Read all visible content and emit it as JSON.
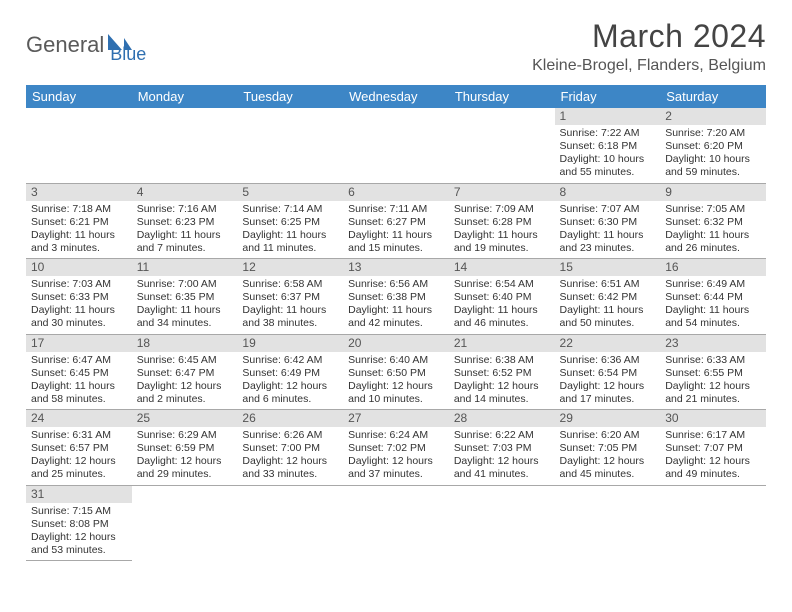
{
  "logo": {
    "part1": "General",
    "part2": "Blue"
  },
  "title": "March 2024",
  "location": "Kleine-Brogel, Flanders, Belgium",
  "colors": {
    "header_bg": "#3d86c6",
    "header_text": "#ffffff",
    "daynum_bg": "#e2e2e2",
    "border": "#a8a8a8",
    "logo_gray": "#5a5a5a",
    "logo_blue": "#2f6fb0"
  },
  "weekdays": [
    "Sunday",
    "Monday",
    "Tuesday",
    "Wednesday",
    "Thursday",
    "Friday",
    "Saturday"
  ],
  "cells": [
    {
      "blank": true
    },
    {
      "blank": true
    },
    {
      "blank": true
    },
    {
      "blank": true
    },
    {
      "blank": true
    },
    {
      "n": "1",
      "sr": "Sunrise: 7:22 AM",
      "ss": "Sunset: 6:18 PM",
      "dl": "Daylight: 10 hours and 55 minutes."
    },
    {
      "n": "2",
      "sr": "Sunrise: 7:20 AM",
      "ss": "Sunset: 6:20 PM",
      "dl": "Daylight: 10 hours and 59 minutes."
    },
    {
      "n": "3",
      "sr": "Sunrise: 7:18 AM",
      "ss": "Sunset: 6:21 PM",
      "dl": "Daylight: 11 hours and 3 minutes."
    },
    {
      "n": "4",
      "sr": "Sunrise: 7:16 AM",
      "ss": "Sunset: 6:23 PM",
      "dl": "Daylight: 11 hours and 7 minutes."
    },
    {
      "n": "5",
      "sr": "Sunrise: 7:14 AM",
      "ss": "Sunset: 6:25 PM",
      "dl": "Daylight: 11 hours and 11 minutes."
    },
    {
      "n": "6",
      "sr": "Sunrise: 7:11 AM",
      "ss": "Sunset: 6:27 PM",
      "dl": "Daylight: 11 hours and 15 minutes."
    },
    {
      "n": "7",
      "sr": "Sunrise: 7:09 AM",
      "ss": "Sunset: 6:28 PM",
      "dl": "Daylight: 11 hours and 19 minutes."
    },
    {
      "n": "8",
      "sr": "Sunrise: 7:07 AM",
      "ss": "Sunset: 6:30 PM",
      "dl": "Daylight: 11 hours and 23 minutes."
    },
    {
      "n": "9",
      "sr": "Sunrise: 7:05 AM",
      "ss": "Sunset: 6:32 PM",
      "dl": "Daylight: 11 hours and 26 minutes."
    },
    {
      "n": "10",
      "sr": "Sunrise: 7:03 AM",
      "ss": "Sunset: 6:33 PM",
      "dl": "Daylight: 11 hours and 30 minutes."
    },
    {
      "n": "11",
      "sr": "Sunrise: 7:00 AM",
      "ss": "Sunset: 6:35 PM",
      "dl": "Daylight: 11 hours and 34 minutes."
    },
    {
      "n": "12",
      "sr": "Sunrise: 6:58 AM",
      "ss": "Sunset: 6:37 PM",
      "dl": "Daylight: 11 hours and 38 minutes."
    },
    {
      "n": "13",
      "sr": "Sunrise: 6:56 AM",
      "ss": "Sunset: 6:38 PM",
      "dl": "Daylight: 11 hours and 42 minutes."
    },
    {
      "n": "14",
      "sr": "Sunrise: 6:54 AM",
      "ss": "Sunset: 6:40 PM",
      "dl": "Daylight: 11 hours and 46 minutes."
    },
    {
      "n": "15",
      "sr": "Sunrise: 6:51 AM",
      "ss": "Sunset: 6:42 PM",
      "dl": "Daylight: 11 hours and 50 minutes."
    },
    {
      "n": "16",
      "sr": "Sunrise: 6:49 AM",
      "ss": "Sunset: 6:44 PM",
      "dl": "Daylight: 11 hours and 54 minutes."
    },
    {
      "n": "17",
      "sr": "Sunrise: 6:47 AM",
      "ss": "Sunset: 6:45 PM",
      "dl": "Daylight: 11 hours and 58 minutes."
    },
    {
      "n": "18",
      "sr": "Sunrise: 6:45 AM",
      "ss": "Sunset: 6:47 PM",
      "dl": "Daylight: 12 hours and 2 minutes."
    },
    {
      "n": "19",
      "sr": "Sunrise: 6:42 AM",
      "ss": "Sunset: 6:49 PM",
      "dl": "Daylight: 12 hours and 6 minutes."
    },
    {
      "n": "20",
      "sr": "Sunrise: 6:40 AM",
      "ss": "Sunset: 6:50 PM",
      "dl": "Daylight: 12 hours and 10 minutes."
    },
    {
      "n": "21",
      "sr": "Sunrise: 6:38 AM",
      "ss": "Sunset: 6:52 PM",
      "dl": "Daylight: 12 hours and 14 minutes."
    },
    {
      "n": "22",
      "sr": "Sunrise: 6:36 AM",
      "ss": "Sunset: 6:54 PM",
      "dl": "Daylight: 12 hours and 17 minutes."
    },
    {
      "n": "23",
      "sr": "Sunrise: 6:33 AM",
      "ss": "Sunset: 6:55 PM",
      "dl": "Daylight: 12 hours and 21 minutes."
    },
    {
      "n": "24",
      "sr": "Sunrise: 6:31 AM",
      "ss": "Sunset: 6:57 PM",
      "dl": "Daylight: 12 hours and 25 minutes."
    },
    {
      "n": "25",
      "sr": "Sunrise: 6:29 AM",
      "ss": "Sunset: 6:59 PM",
      "dl": "Daylight: 12 hours and 29 minutes."
    },
    {
      "n": "26",
      "sr": "Sunrise: 6:26 AM",
      "ss": "Sunset: 7:00 PM",
      "dl": "Daylight: 12 hours and 33 minutes."
    },
    {
      "n": "27",
      "sr": "Sunrise: 6:24 AM",
      "ss": "Sunset: 7:02 PM",
      "dl": "Daylight: 12 hours and 37 minutes."
    },
    {
      "n": "28",
      "sr": "Sunrise: 6:22 AM",
      "ss": "Sunset: 7:03 PM",
      "dl": "Daylight: 12 hours and 41 minutes."
    },
    {
      "n": "29",
      "sr": "Sunrise: 6:20 AM",
      "ss": "Sunset: 7:05 PM",
      "dl": "Daylight: 12 hours and 45 minutes."
    },
    {
      "n": "30",
      "sr": "Sunrise: 6:17 AM",
      "ss": "Sunset: 7:07 PM",
      "dl": "Daylight: 12 hours and 49 minutes."
    },
    {
      "n": "31",
      "sr": "Sunrise: 7:15 AM",
      "ss": "Sunset: 8:08 PM",
      "dl": "Daylight: 12 hours and 53 minutes."
    },
    {
      "blank": true,
      "noborder": true
    },
    {
      "blank": true,
      "noborder": true
    },
    {
      "blank": true,
      "noborder": true
    },
    {
      "blank": true,
      "noborder": true
    },
    {
      "blank": true,
      "noborder": true
    },
    {
      "blank": true,
      "noborder": true
    }
  ]
}
